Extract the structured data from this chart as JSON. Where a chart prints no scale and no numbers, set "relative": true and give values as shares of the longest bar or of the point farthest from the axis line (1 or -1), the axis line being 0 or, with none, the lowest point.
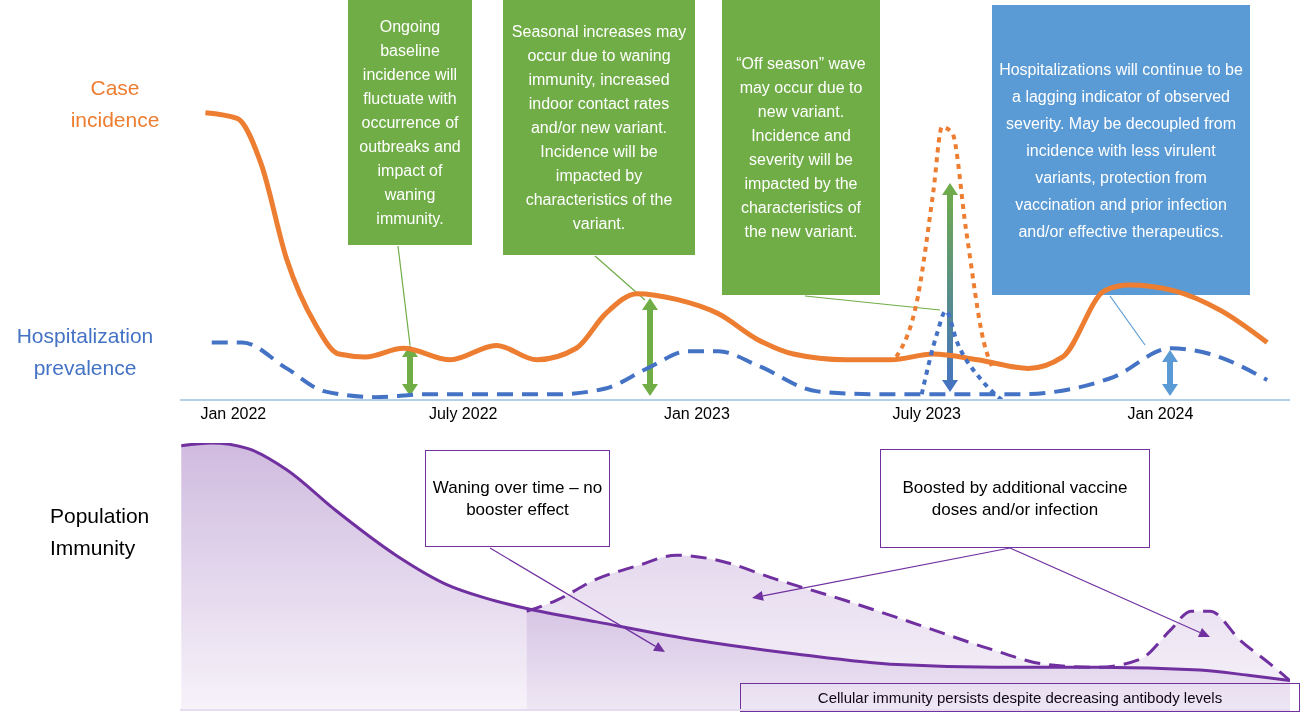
{
  "chart_data": [
    {
      "type": "line",
      "relative": true,
      "marker": "none",
      "xlim": [
        "2021-11-20",
        "2024-04-12"
      ],
      "xticks": [
        {
          "value": "2022-01-01",
          "label": "Jan 2022"
        },
        {
          "value": "2022-07-01",
          "label": "July 2022"
        },
        {
          "value": "2023-01-01",
          "label": "Jan 2023"
        },
        {
          "value": "2023-07-01",
          "label": "July 2023"
        },
        {
          "value": "2024-01-01",
          "label": "Jan 2024"
        }
      ],
      "series": [
        {
          "name": "Case incidence",
          "color": "#ed7d31",
          "line_style": "solid",
          "x": [
            "2021-12-10",
            "2022-01-04",
            "2022-01-23",
            "2022-02-12",
            "2022-03-07",
            "2022-03-25",
            "2022-04-15",
            "2022-05-15",
            "2022-06-21",
            "2022-07-27",
            "2022-08-28",
            "2022-09-28",
            "2022-10-21",
            "2022-11-15",
            "2022-12-16",
            "2023-01-18",
            "2023-02-18",
            "2023-03-18",
            "2023-04-28",
            "2023-06-03",
            "2023-07-06",
            "2023-08-10",
            "2023-09-19",
            "2023-10-16",
            "2023-11-18",
            "2023-12-07",
            "2024-01-12",
            "2024-02-18",
            "2024-03-25"
          ],
          "values": [
            1.0,
            0.98,
            0.82,
            0.49,
            0.26,
            0.16,
            0.15,
            0.18,
            0.14,
            0.19,
            0.14,
            0.18,
            0.3,
            0.37,
            0.35,
            0.3,
            0.21,
            0.16,
            0.14,
            0.14,
            0.16,
            0.14,
            0.11,
            0.15,
            0.38,
            0.4,
            0.38,
            0.31,
            0.2
          ]
        },
        {
          "name": "Hospitalization prevalence",
          "color": "#4472c4",
          "line_style": "dashed",
          "x": [
            "2021-12-15",
            "2022-01-08",
            "2022-02-12",
            "2022-03-14",
            "2022-04-23",
            "2022-06-01",
            "2022-07-26",
            "2022-09-12",
            "2022-10-21",
            "2022-11-23",
            "2022-12-25",
            "2023-01-18",
            "2023-02-18",
            "2023-04-06",
            "2023-05-22",
            "2023-07-16",
            "2023-09-12",
            "2023-11-25",
            "2024-01-09",
            "2024-02-09",
            "2024-03-25"
          ],
          "values": [
            0.2,
            0.2,
            0.11,
            0.03,
            0.01,
            0.02,
            0.02,
            0.02,
            0.04,
            0.11,
            0.17,
            0.17,
            0.12,
            0.03,
            0.02,
            0.02,
            0.02,
            0.08,
            0.18,
            0.16,
            0.07
          ]
        },
        {
          "color": "#ed7d31",
          "line_style": "dotted",
          "x": [
            "2023-06-07",
            "2023-06-24",
            "2023-07-06",
            "2023-07-13",
            "2023-07-21",
            "2023-08-01",
            "2023-08-15",
            "2023-08-22"
          ],
          "values": [
            0.15,
            0.36,
            0.72,
            0.95,
            0.93,
            0.59,
            0.2,
            0.11
          ]
        },
        {
          "color": "#4472c4",
          "line_style": "dotted",
          "x": [
            "2023-06-27",
            "2023-07-09",
            "2023-07-16",
            "2023-07-25",
            "2023-08-13",
            "2023-08-29"
          ],
          "values": [
            0.02,
            0.23,
            0.31,
            0.2,
            0.07,
            0.0
          ]
        }
      ],
      "annotations": [
        "Ongoing baseline incidence will fluctuate with occurrence of outbreaks and impact of waning immunity.",
        "Seasonal increases may occur due to waning immunity, increased indoor contact rates and/or new variant. Incidence will be impacted by characteristics of the variant.",
        "“Off season” wave may occur due to new variant. Incidence and severity will be impacted by the characteristics of the new variant.",
        "Hospitalizations will continue to be a lagging indicator of observed severity. May be decoupled from incidence with less virulent variants, protection from vaccination and prior infection and/or effective therapeutics."
      ]
    },
    {
      "type": "area",
      "relative": true,
      "ylabel": "Population Immunity",
      "tick_labels": false,
      "xlim": [
        "2021-11-20",
        "2024-04-12"
      ],
      "series": [
        {
          "color": "#7030a0",
          "line_style": "dashed",
          "x": [
            "2022-08-20",
            "2022-09-12",
            "2022-10-14",
            "2022-11-15",
            "2022-12-16",
            "2023-01-18",
            "2023-03-04",
            "2023-04-28",
            "2023-06-24",
            "2023-08-19",
            "2023-10-04",
            "2023-11-13",
            "2023-12-16",
            "2024-01-09",
            "2024-01-25",
            "2024-02-09",
            "2024-03-04",
            "2024-03-28",
            "2024-04-12"
          ],
          "values": [
            0.37,
            0.41,
            0.49,
            0.54,
            0.58,
            0.56,
            0.49,
            0.41,
            0.32,
            0.23,
            0.17,
            0.16,
            0.19,
            0.3,
            0.37,
            0.37,
            0.26,
            0.17,
            0.11
          ]
        },
        {
          "color": "#7030a0",
          "line_style": "solid",
          "x": [
            "2021-11-21",
            "2021-12-15",
            "2022-01-12",
            "2022-02-12",
            "2022-03-22",
            "2022-05-09",
            "2022-06-18",
            "2022-07-18",
            "2022-08-20",
            "2022-10-14",
            "2023-01-02",
            "2023-03-20",
            "2023-06-08",
            "2023-08-25",
            "2023-11-13",
            "2024-02-01",
            "2024-03-10",
            "2024-04-12"
          ],
          "values": [
            0.99,
            1.0,
            0.98,
            0.9,
            0.75,
            0.58,
            0.47,
            0.42,
            0.38,
            0.33,
            0.26,
            0.21,
            0.17,
            0.16,
            0.16,
            0.15,
            0.13,
            0.11
          ]
        }
      ],
      "annotations": [
        "Waning over time – no booster effect",
        "Boosted by additional vaccine doses and/or infection",
        "Cellular immunity persists despite decreasing antibody levels"
      ]
    }
  ]
}
